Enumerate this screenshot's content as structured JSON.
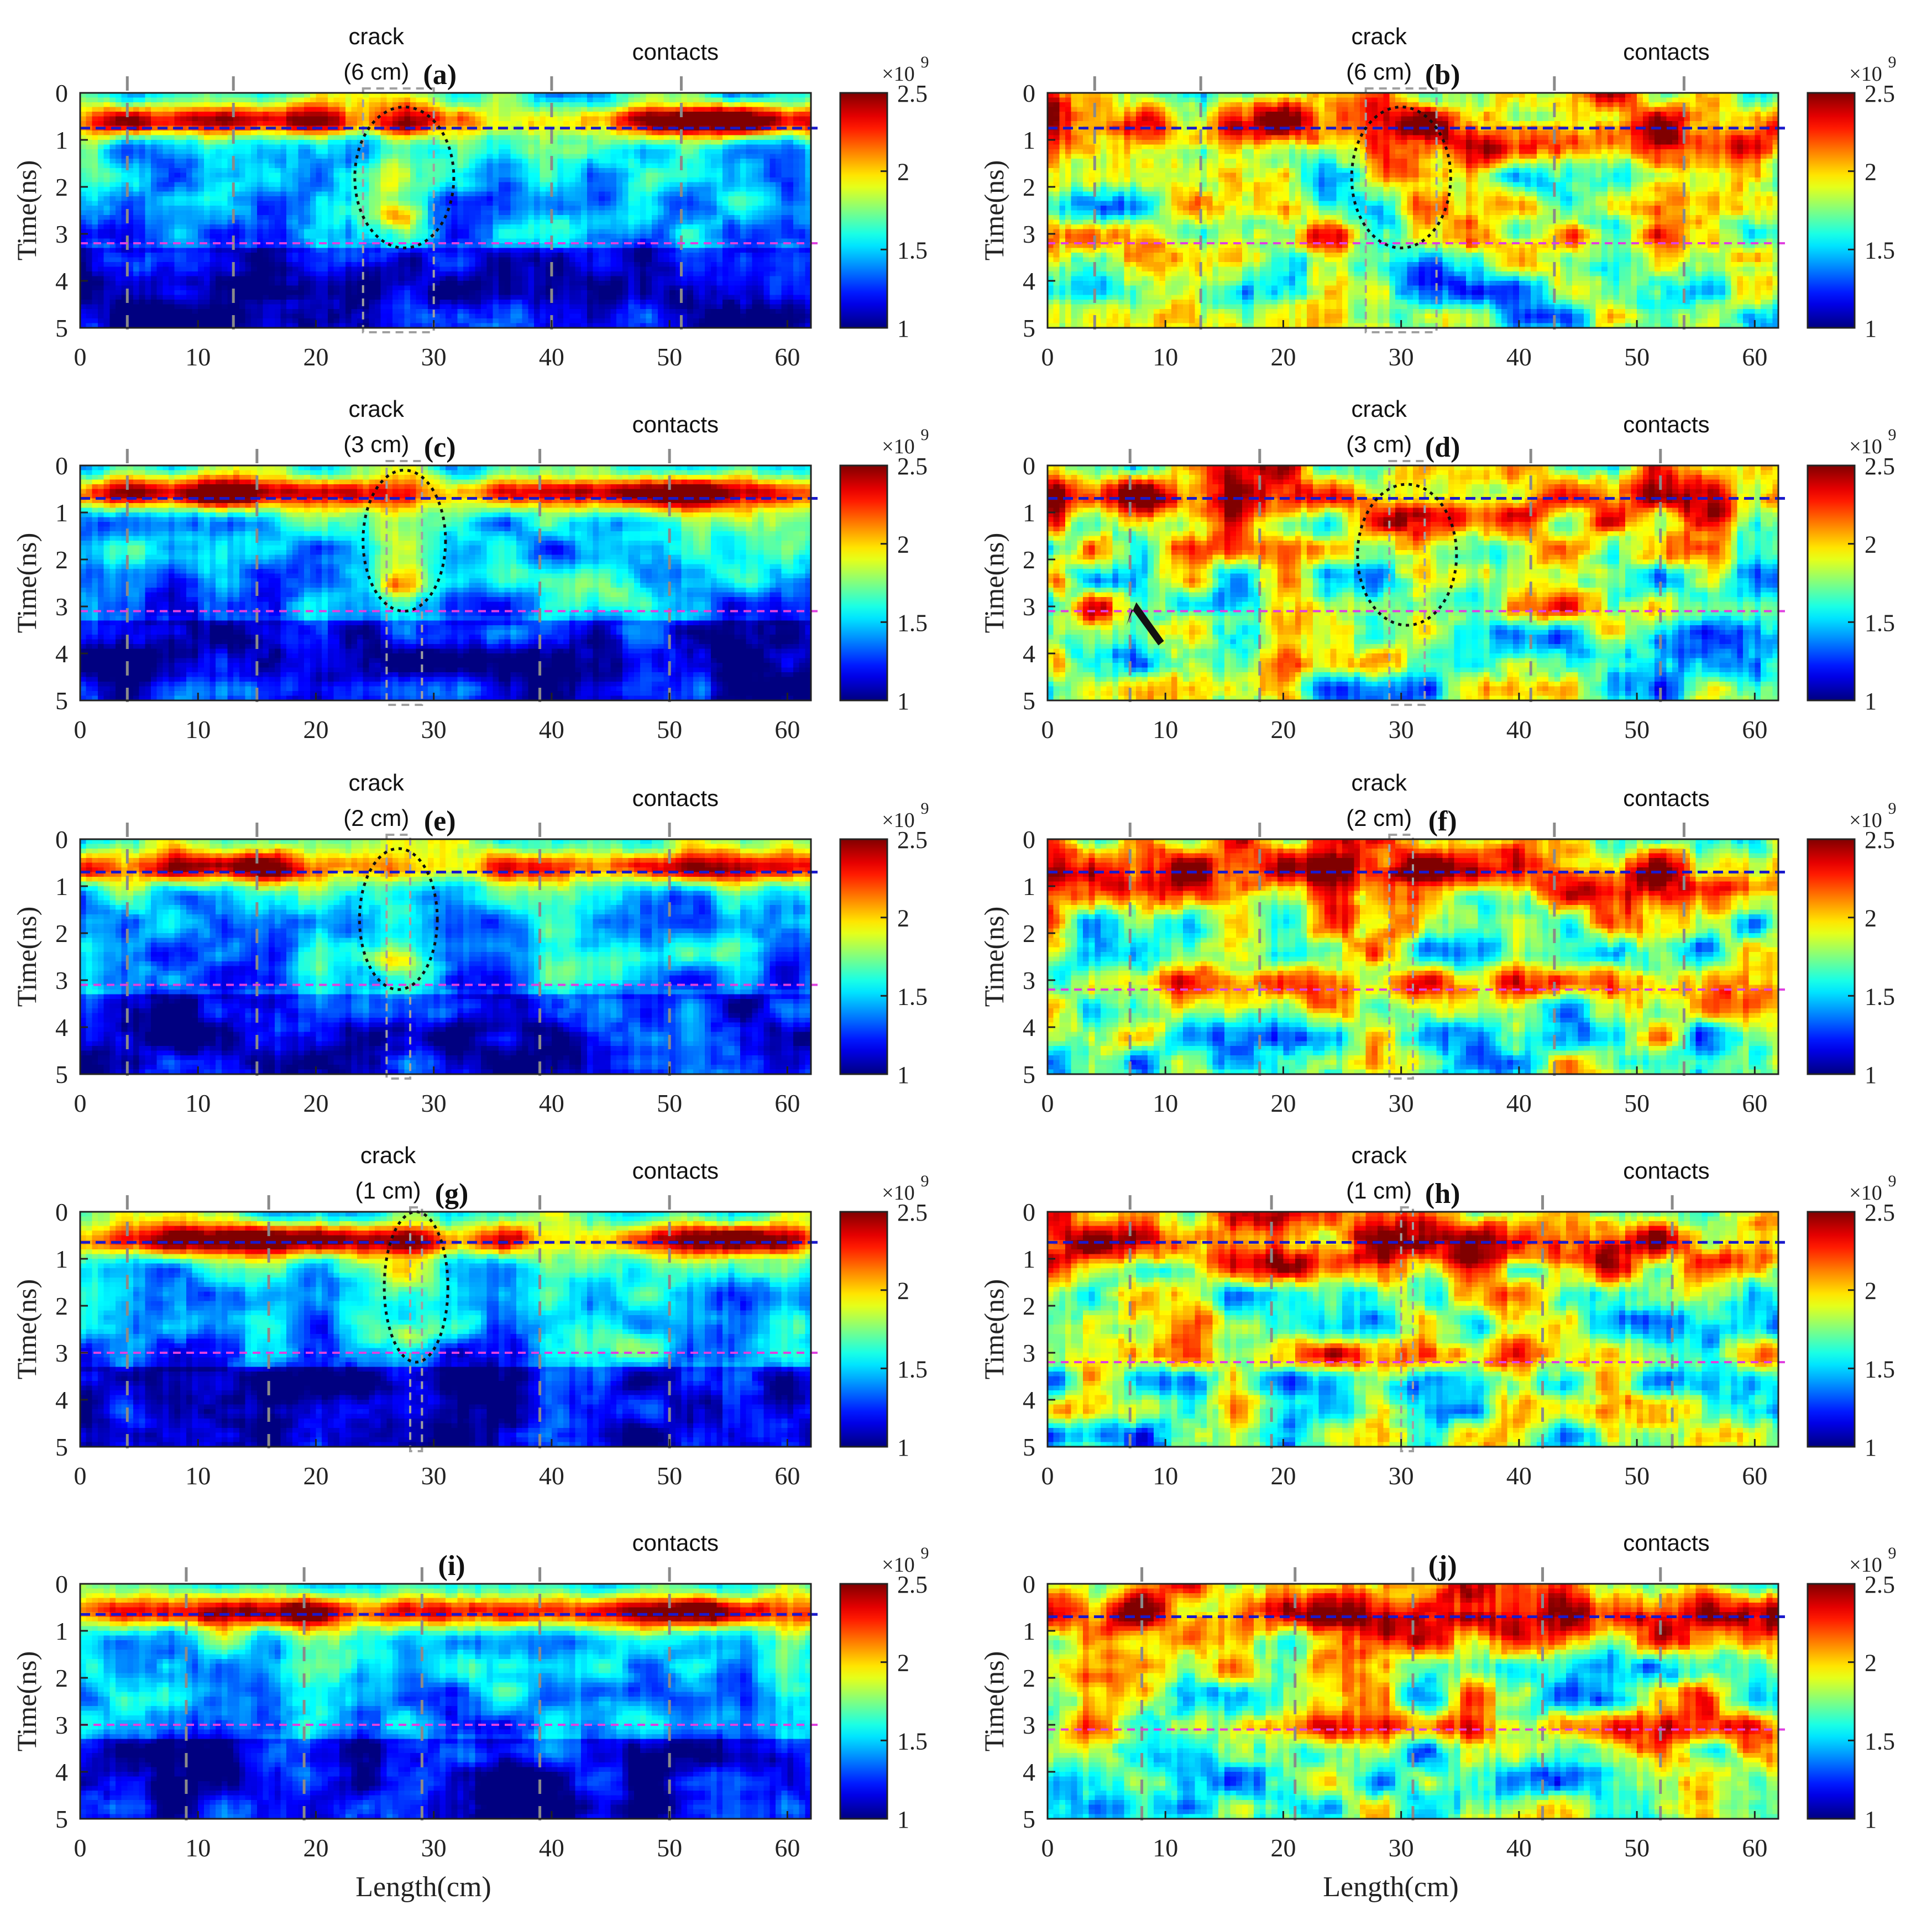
{
  "axes": {
    "xlabel": "Length(cm)",
    "ylabel": "Time(ns)",
    "xlim": [
      0,
      62
    ],
    "ylim": [
      0,
      5
    ],
    "xticks": [
      0,
      10,
      20,
      30,
      40,
      50,
      60
    ],
    "yticks": [
      0,
      1,
      2,
      3,
      4,
      5
    ]
  },
  "colorbar": {
    "range": [
      1,
      2.5
    ],
    "ticks": [
      "1",
      "1.5",
      "2",
      "2.5"
    ],
    "exponent_base": "×10",
    "exponent_power": "9",
    "colormap": "jet"
  },
  "reference_lines": {
    "upper_color": "#1a1acc",
    "lower_color": "#e040e0"
  },
  "chart_data": [
    {
      "type": "heatmap",
      "panel": "(a)",
      "crack_title": "crack",
      "crack_size": "(6 cm)",
      "contacts_label": "contacts",
      "pattern": "intact",
      "upper_line_ns": 0.75,
      "lower_line_ns": 3.2,
      "vlines_cm": [
        4,
        13,
        40,
        51
      ],
      "crack_center_cm": 27,
      "ellipse": {
        "cx": 27.5,
        "cy": 1.8,
        "rx": 4.2,
        "ry": 1.5
      },
      "box": [
        24,
        30
      ]
    },
    {
      "type": "heatmap",
      "panel": "(b)",
      "crack_title": "crack",
      "crack_size": "(6 cm)",
      "contacts_label": "contacts",
      "pattern": "damaged",
      "upper_line_ns": 0.75,
      "lower_line_ns": 3.2,
      "vlines_cm": [
        4,
        13,
        43,
        54
      ],
      "crack_center_cm": 30,
      "ellipse": {
        "cx": 30,
        "cy": 1.8,
        "rx": 4.2,
        "ry": 1.5
      },
      "box": [
        27,
        33
      ]
    },
    {
      "type": "heatmap",
      "panel": "(c)",
      "crack_title": "crack",
      "crack_size": "(3 cm)",
      "contacts_label": "contacts",
      "pattern": "intact",
      "upper_line_ns": 0.7,
      "lower_line_ns": 3.1,
      "vlines_cm": [
        4,
        15,
        39,
        50
      ],
      "crack_center_cm": 27,
      "ellipse": {
        "cx": 27.5,
        "cy": 1.6,
        "rx": 3.5,
        "ry": 1.5
      },
      "box": [
        26,
        29
      ]
    },
    {
      "type": "heatmap",
      "panel": "(d)",
      "crack_title": "crack",
      "crack_size": "(3 cm)",
      "contacts_label": "contacts",
      "pattern": "damaged",
      "upper_line_ns": 0.7,
      "lower_line_ns": 3.1,
      "vlines_cm": [
        7,
        18,
        41,
        52
      ],
      "crack_center_cm": 30,
      "ellipse": {
        "cx": 30.5,
        "cy": 1.9,
        "rx": 4.2,
        "ry": 1.5
      },
      "box": [
        29,
        32
      ],
      "arrow": {
        "x": 8,
        "y": 3.5
      }
    },
    {
      "type": "heatmap",
      "panel": "(e)",
      "crack_title": "crack",
      "crack_size": "(2 cm)",
      "contacts_label": "contacts",
      "pattern": "intact",
      "upper_line_ns": 0.7,
      "lower_line_ns": 3.1,
      "vlines_cm": [
        4,
        15,
        39,
        50
      ],
      "crack_center_cm": 27,
      "ellipse": {
        "cx": 27,
        "cy": 1.7,
        "rx": 3.3,
        "ry": 1.5
      },
      "box": [
        26,
        28
      ]
    },
    {
      "type": "heatmap",
      "panel": "(f)",
      "crack_title": "crack",
      "crack_size": "(2 cm)",
      "contacts_label": "contacts",
      "pattern": "damaged",
      "upper_line_ns": 0.7,
      "lower_line_ns": 3.2,
      "vlines_cm": [
        7,
        18,
        43,
        54
      ],
      "crack_center_cm": 30,
      "ellipse": null,
      "box": [
        29,
        31
      ]
    },
    {
      "type": "heatmap",
      "panel": "(g)",
      "crack_title": "crack",
      "crack_size": "(1 cm)",
      "contacts_label": "contacts",
      "pattern": "intact",
      "upper_line_ns": 0.65,
      "lower_line_ns": 3.0,
      "vlines_cm": [
        4,
        16,
        39,
        50
      ],
      "crack_center_cm": 28,
      "ellipse": {
        "cx": 28.5,
        "cy": 1.6,
        "rx": 2.7,
        "ry": 1.6
      },
      "box": [
        28,
        29
      ]
    },
    {
      "type": "heatmap",
      "panel": "(h)",
      "crack_title": "crack",
      "crack_size": "(1 cm)",
      "contacts_label": "contacts",
      "pattern": "damaged",
      "upper_line_ns": 0.65,
      "lower_line_ns": 3.2,
      "vlines_cm": [
        7,
        19,
        42,
        53
      ],
      "crack_center_cm": 30,
      "ellipse": null,
      "box": [
        30,
        31
      ]
    },
    {
      "type": "heatmap",
      "panel": "(i)",
      "crack_title": "",
      "crack_size": "",
      "contacts_label": "contacts",
      "pattern": "intact",
      "upper_line_ns": 0.65,
      "lower_line_ns": 3.0,
      "vlines_cm": [
        9,
        19,
        29,
        39,
        50
      ],
      "crack_center_cm": null,
      "ellipse": null,
      "box": null
    },
    {
      "type": "heatmap",
      "panel": "(j)",
      "crack_title": "",
      "crack_size": "",
      "contacts_label": "contacts",
      "pattern": "damaged",
      "upper_line_ns": 0.7,
      "lower_line_ns": 3.1,
      "vlines_cm": [
        8,
        21,
        31,
        42,
        52
      ],
      "crack_center_cm": null,
      "ellipse": null,
      "box": null
    }
  ]
}
